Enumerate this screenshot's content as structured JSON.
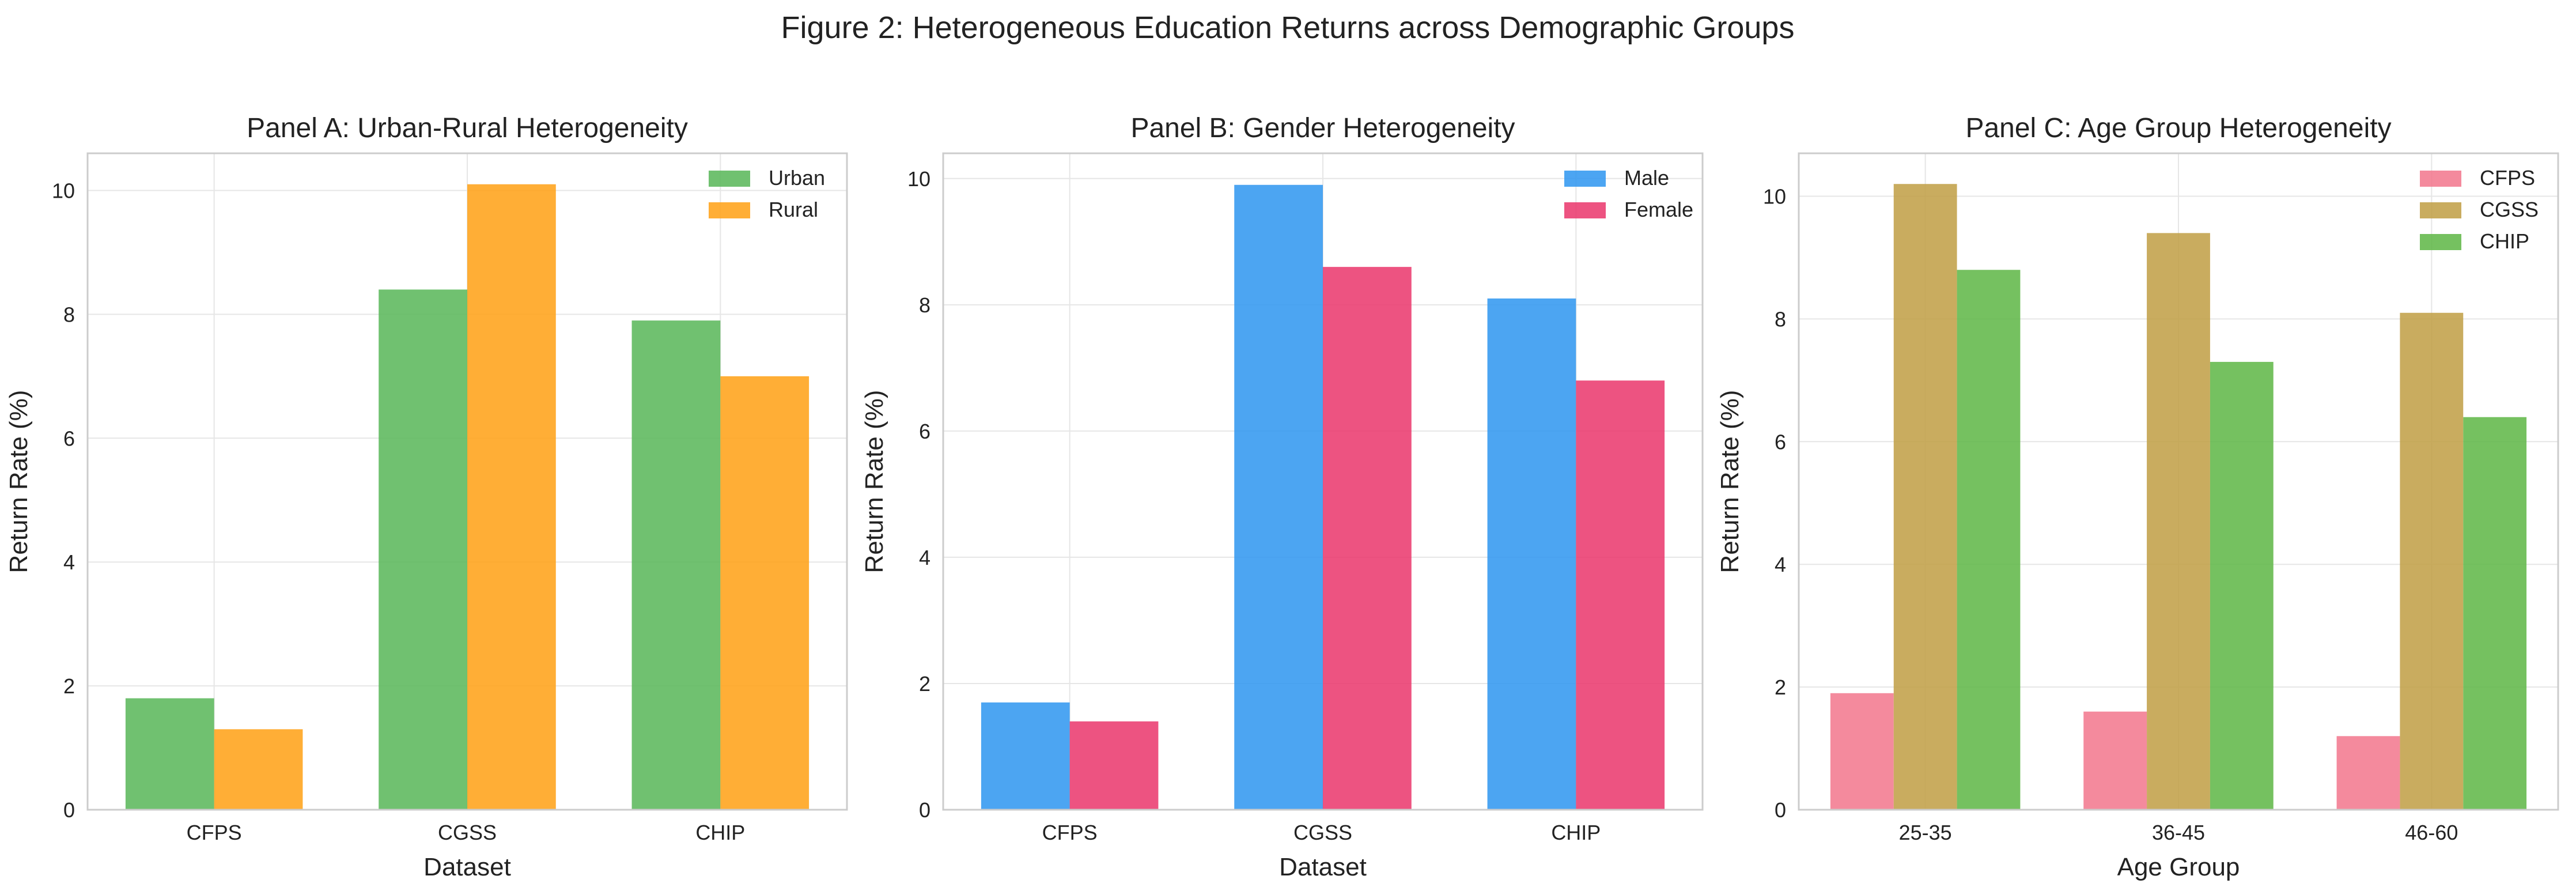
{
  "figure_title": "Figure 2: Heterogeneous Education Returns across Demographic Groups",
  "chart_data": [
    {
      "type": "bar",
      "title": "Panel A: Urban-Rural Heterogeneity",
      "xlabel": "Dataset",
      "ylabel": "Return Rate (%)",
      "categories": [
        "CFPS",
        "CGSS",
        "CHIP"
      ],
      "series": [
        {
          "name": "Urban",
          "values": [
            1.8,
            8.4,
            7.9
          ],
          "color": "#5cb85c"
        },
        {
          "name": "Rural",
          "values": [
            1.3,
            10.1,
            7.0
          ],
          "color": "#ffa31a"
        }
      ],
      "ylim": [
        0,
        10.6
      ],
      "yticks": [
        0,
        2,
        4,
        6,
        8,
        10
      ],
      "grid": true,
      "legend": "top-right"
    },
    {
      "type": "bar",
      "title": "Panel B: Gender Heterogeneity",
      "xlabel": "Dataset",
      "ylabel": "Return Rate (%)",
      "categories": [
        "CFPS",
        "CGSS",
        "CHIP"
      ],
      "series": [
        {
          "name": "Male",
          "values": [
            1.7,
            9.9,
            8.1
          ],
          "color": "#3399f0"
        },
        {
          "name": "Female",
          "values": [
            1.4,
            8.6,
            6.8
          ],
          "color": "#eb3b70"
        }
      ],
      "ylim": [
        0,
        10.4
      ],
      "yticks": [
        0,
        2,
        4,
        6,
        8,
        10
      ],
      "grid": true,
      "legend": "top-right"
    },
    {
      "type": "bar",
      "title": "Panel C: Age Group Heterogeneity",
      "xlabel": "Age Group",
      "ylabel": "Return Rate (%)",
      "categories": [
        "25-35",
        "36-45",
        "46-60"
      ],
      "series": [
        {
          "name": "CFPS",
          "values": [
            1.9,
            1.6,
            1.2
          ],
          "color": "#f37a8f"
        },
        {
          "name": "CGSS",
          "values": [
            10.2,
            9.4,
            8.1
          ],
          "color": "#c2a049"
        },
        {
          "name": "CHIP",
          "values": [
            8.8,
            7.3,
            6.4
          ],
          "color": "#62b84a"
        }
      ],
      "ylim": [
        0,
        10.7
      ],
      "yticks": [
        0,
        2,
        4,
        6,
        8,
        10
      ],
      "grid": true,
      "legend": "top-right"
    }
  ]
}
